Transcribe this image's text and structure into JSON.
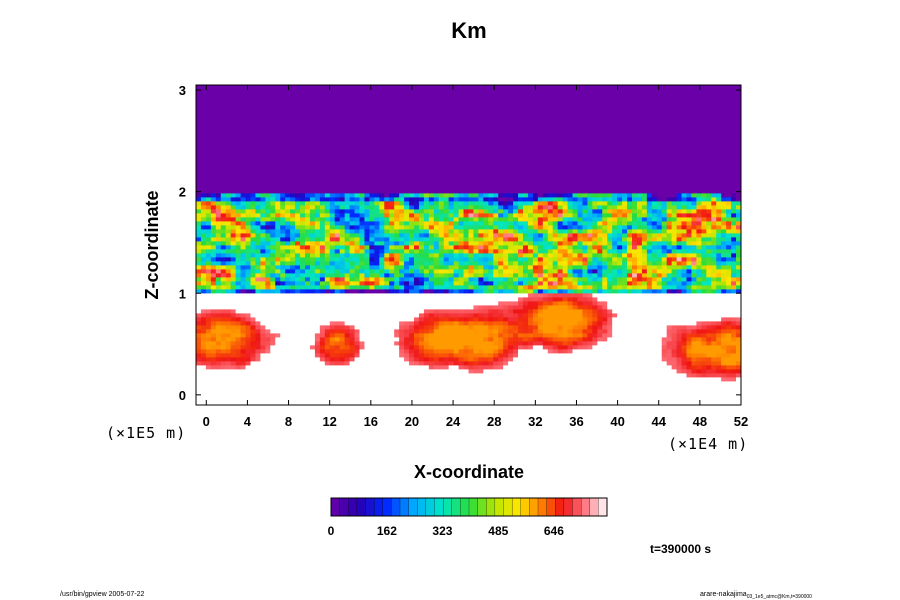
{
  "chart_data": {
    "type": "heatmap",
    "title": "Km",
    "xlabel": "X-coordinate",
    "ylabel": "Z-coordinate",
    "x_unit": "(×1E4 m)",
    "z_unit": "(×1E5 m)",
    "xlim": [
      -1,
      52
    ],
    "ylim": [
      -0.1,
      3.05
    ],
    "x_ticks": [
      "0",
      "4",
      "8",
      "12",
      "16",
      "20",
      "24",
      "28",
      "32",
      "36",
      "40",
      "44",
      "48",
      "52"
    ],
    "y_ticks": [
      "0",
      "1",
      "2",
      "3"
    ],
    "colorbar": {
      "min": 0,
      "max": 800,
      "tick_labels": [
        "0",
        "162",
        "323",
        "485",
        "646"
      ],
      "tick_values": [
        0,
        162,
        323,
        485,
        646
      ],
      "levels": 32
    },
    "background_value_top": 0,
    "colors": {
      "low": "#6a00a8",
      "high": "#ffffff"
    },
    "time_label": "t=390000 s",
    "grid": false
  },
  "footer": {
    "left": "/usr/bin/gpview 2005-07-22",
    "right_main": "arare-nakajima",
    "right_sub": "03_1e5_atmc@Km,t=390000"
  }
}
